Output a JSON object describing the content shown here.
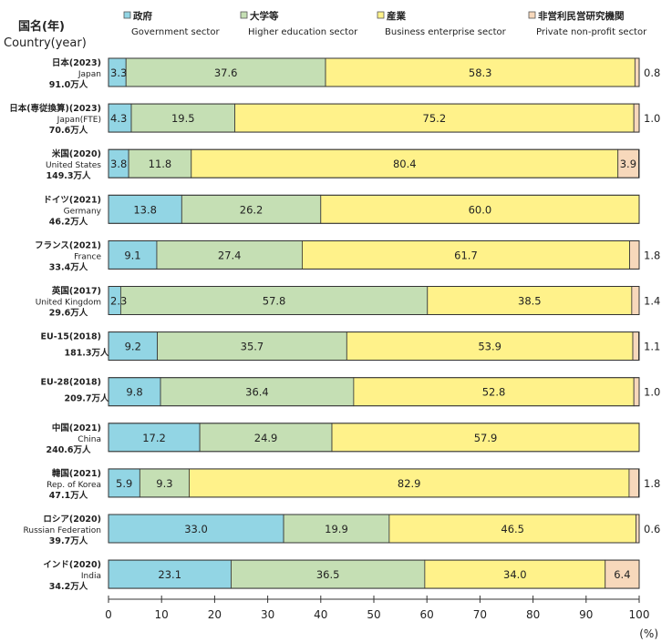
{
  "header": {
    "title_ja": "国名(年)",
    "title_en": "Country(year)",
    "percent_unit": "(%)"
  },
  "legend": [
    {
      "ja": "政府",
      "en": "Government sector",
      "color": "#92d5e4"
    },
    {
      "ja": "大学等",
      "en": "Higher education sector",
      "color": "#c5dfb4"
    },
    {
      "ja": "産業",
      "en": "Business enterprise sector",
      "color": "#fff28a"
    },
    {
      "ja": "非営利民営研究機関",
      "en": "Private non-profit sector",
      "color": "#f7d8bb"
    }
  ],
  "chart_data": {
    "type": "bar",
    "orientation": "horizontal",
    "stacked": true,
    "xlim": [
      0,
      100
    ],
    "xticks": [
      0,
      10,
      20,
      30,
      40,
      50,
      60,
      70,
      80,
      90,
      100
    ],
    "xlabel": "(%)",
    "grid": false,
    "legend_position": "top",
    "rows": [
      {
        "name": "日本(2023)",
        "en": "Japan",
        "total": "91.0万人",
        "values": [
          3.3,
          37.6,
          58.3,
          0.8
        ]
      },
      {
        "name": "日本(専従換算)(2023)",
        "en": "Japan(FTE)",
        "total": "70.6万人",
        "values": [
          4.3,
          19.5,
          75.2,
          1.0
        ]
      },
      {
        "name": "米国(2020)",
        "en": "United States",
        "total": "149.3万人",
        "values": [
          3.8,
          11.8,
          80.4,
          3.9
        ]
      },
      {
        "name": "ドイツ(2021)",
        "en": "Germany",
        "total": "46.2万人",
        "values": [
          13.8,
          26.2,
          60.0,
          0
        ]
      },
      {
        "name": "フランス(2021)",
        "en": "France",
        "total": "33.4万人",
        "values": [
          9.1,
          27.4,
          61.7,
          1.8
        ]
      },
      {
        "name": "英国(2017)",
        "en": "United Kingdom",
        "total": "29.6万人",
        "values": [
          2.3,
          57.8,
          38.5,
          1.4
        ]
      },
      {
        "name": "EU-15(2018)",
        "en": "",
        "total": "181.3万人",
        "values": [
          9.2,
          35.7,
          53.9,
          1.1
        ]
      },
      {
        "name": "EU-28(2018)",
        "en": "",
        "total": "209.7万人",
        "values": [
          9.8,
          36.4,
          52.8,
          1.0
        ]
      },
      {
        "name": "中国(2021)",
        "en": "China",
        "total": "240.6万人",
        "values": [
          17.2,
          24.9,
          57.9,
          0
        ]
      },
      {
        "name": "韓国(2021)",
        "en": "Rep. of Korea",
        "total": "47.1万人",
        "values": [
          5.9,
          9.3,
          82.9,
          1.8
        ]
      },
      {
        "name": "ロシア(2020)",
        "en": "Russian Federation",
        "total": "39.7万人",
        "values": [
          33.0,
          19.9,
          46.5,
          0.6
        ]
      },
      {
        "name": "インド(2020)",
        "en": "India",
        "total": "34.2万人",
        "values": [
          23.1,
          36.5,
          34.0,
          6.4
        ]
      }
    ]
  }
}
